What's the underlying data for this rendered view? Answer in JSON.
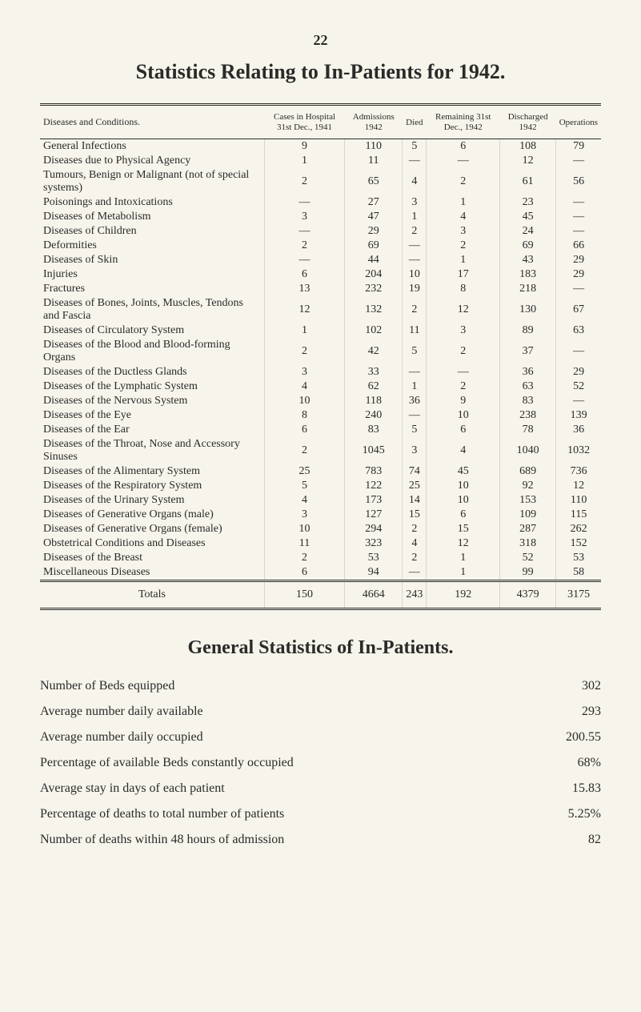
{
  "page_number": "22",
  "title": "Statistics Relating to In-Patients for 1942.",
  "table": {
    "columns": [
      "Diseases and Conditions.",
      "Cases in Hospital 31st Dec., 1941",
      "Admissions 1942",
      "Died",
      "Remaining 31st Dec., 1942",
      "Discharged 1942",
      "Operations"
    ],
    "rows": [
      {
        "label": "General Infections",
        "indent": false,
        "cells": [
          "9",
          "110",
          "5",
          "6",
          "108",
          "79"
        ]
      },
      {
        "label": "Diseases due to Physical Agency",
        "indent": false,
        "cells": [
          "1",
          "11",
          "—",
          "—",
          "12",
          "—"
        ]
      },
      {
        "label": "Tumours, Benign or Malignant (not of special systems)",
        "indent": false,
        "cells": [
          "2",
          "65",
          "4",
          "2",
          "61",
          "56"
        ]
      },
      {
        "label": "Poisonings and Intoxications",
        "indent": false,
        "cells": [
          "—",
          "27",
          "3",
          "1",
          "23",
          "—"
        ]
      },
      {
        "label": "Diseases of Metabolism",
        "indent": false,
        "cells": [
          "3",
          "47",
          "1",
          "4",
          "45",
          "—"
        ]
      },
      {
        "label": "Diseases of Children",
        "indent": false,
        "cells": [
          "—",
          "29",
          "2",
          "3",
          "24",
          "—"
        ]
      },
      {
        "label": "Deformities",
        "indent": false,
        "cells": [
          "2",
          "69",
          "—",
          "2",
          "69",
          "66"
        ]
      },
      {
        "label": "Diseases of Skin",
        "indent": false,
        "cells": [
          "—",
          "44",
          "—",
          "1",
          "43",
          "29"
        ]
      },
      {
        "label": "Injuries",
        "indent": false,
        "cells": [
          "6",
          "204",
          "10",
          "17",
          "183",
          "29"
        ]
      },
      {
        "label": "Fractures",
        "indent": false,
        "cells": [
          "13",
          "232",
          "19",
          "8",
          "218",
          "—"
        ]
      },
      {
        "label": "Diseases of Bones, Joints, Muscles, Tendons and Fascia",
        "indent": false,
        "cells": [
          "12",
          "132",
          "2",
          "12",
          "130",
          "67"
        ]
      },
      {
        "label": "Diseases of Circulatory System",
        "indent": false,
        "cells": [
          "1",
          "102",
          "11",
          "3",
          "89",
          "63"
        ]
      },
      {
        "label": "Diseases of the Blood and Blood-forming Organs",
        "indent": false,
        "cells": [
          "2",
          "42",
          "5",
          "2",
          "37",
          "—"
        ]
      },
      {
        "label": "Diseases of the Ductless Glands",
        "indent": false,
        "cells": [
          "3",
          "33",
          "—",
          "—",
          "36",
          "29"
        ]
      },
      {
        "label": "Diseases of the Lymphatic System",
        "indent": false,
        "cells": [
          "4",
          "62",
          "1",
          "2",
          "63",
          "52"
        ]
      },
      {
        "label": "Diseases of the Nervous System",
        "indent": false,
        "cells": [
          "10",
          "118",
          "36",
          "9",
          "83",
          "—"
        ]
      },
      {
        "label": "Diseases of the Eye",
        "indent": false,
        "cells": [
          "8",
          "240",
          "—",
          "10",
          "238",
          "139"
        ]
      },
      {
        "label": "Diseases of the Ear",
        "indent": false,
        "cells": [
          "6",
          "83",
          "5",
          "6",
          "78",
          "36"
        ]
      },
      {
        "label": "Diseases of the Throat, Nose and Accessory Sinuses",
        "indent": false,
        "cells": [
          "2",
          "1045",
          "3",
          "4",
          "1040",
          "1032"
        ]
      },
      {
        "label": "Diseases of the Alimentary System",
        "indent": false,
        "cells": [
          "25",
          "783",
          "74",
          "45",
          "689",
          "736"
        ]
      },
      {
        "label": "Diseases of the Respiratory System",
        "indent": false,
        "cells": [
          "5",
          "122",
          "25",
          "10",
          "92",
          "12"
        ]
      },
      {
        "label": "Diseases of the Urinary System",
        "indent": false,
        "cells": [
          "4",
          "173",
          "14",
          "10",
          "153",
          "110"
        ]
      },
      {
        "label": "Diseases of Generative Organs (male)",
        "indent": false,
        "cells": [
          "3",
          "127",
          "15",
          "6",
          "109",
          "115"
        ]
      },
      {
        "label": "Diseases of Generative Organs (female)",
        "indent": false,
        "cells": [
          "10",
          "294",
          "2",
          "15",
          "287",
          "262"
        ]
      },
      {
        "label": "Obstetrical Conditions and Diseases",
        "indent": false,
        "cells": [
          "11",
          "323",
          "4",
          "12",
          "318",
          "152"
        ]
      },
      {
        "label": "Diseases of the Breast",
        "indent": false,
        "cells": [
          "2",
          "53",
          "2",
          "1",
          "52",
          "53"
        ]
      },
      {
        "label": "Miscellaneous Diseases",
        "indent": false,
        "cells": [
          "6",
          "94",
          "—",
          "1",
          "99",
          "58"
        ]
      }
    ],
    "totals": {
      "label": "Totals",
      "cells": [
        "150",
        "4664",
        "243",
        "192",
        "4379",
        "3175"
      ]
    }
  },
  "subtitle": "General Statistics of In-Patients.",
  "stats": [
    {
      "label": "Number of Beds equipped",
      "value": "302"
    },
    {
      "label": "Average number daily available",
      "value": "293"
    },
    {
      "label": "Average number daily occupied",
      "value": "200.55"
    },
    {
      "label": "Percentage of available Beds constantly occupied",
      "value": "68%"
    },
    {
      "label": "Average stay in days of each patient",
      "value": "15.83"
    },
    {
      "label": "Percentage of deaths to total number of patients",
      "value": "5.25%"
    },
    {
      "label": "Number of deaths within 48 hours of admission",
      "value": "82"
    }
  ]
}
